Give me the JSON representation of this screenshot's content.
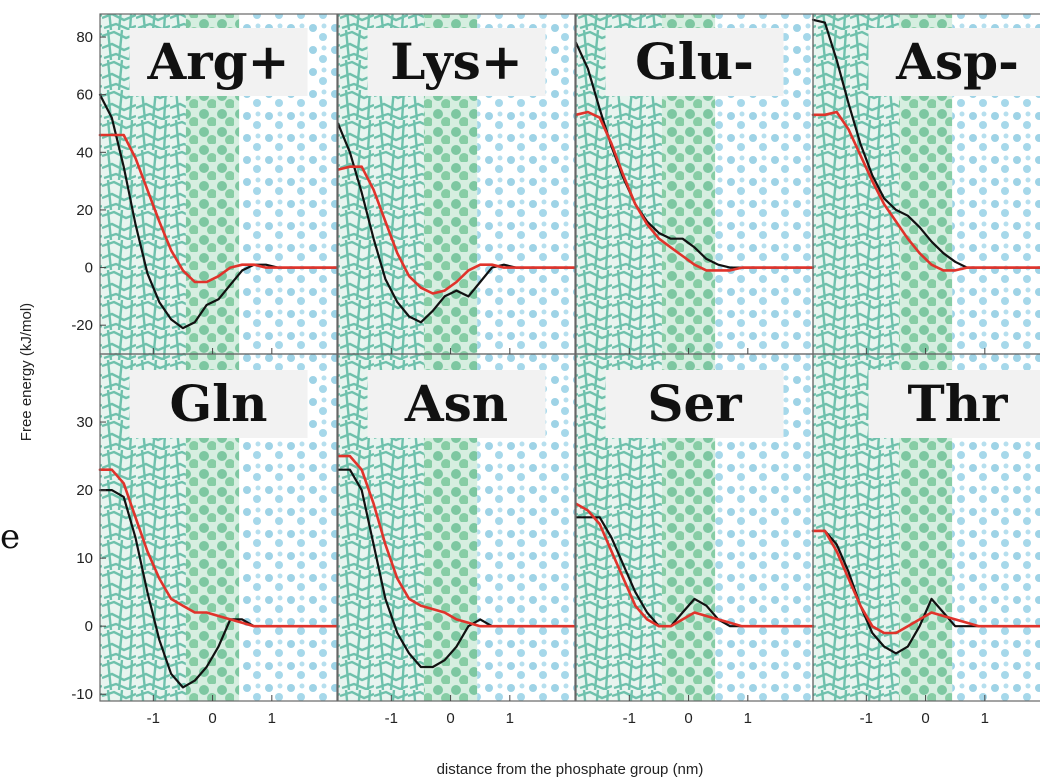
{
  "xlabel": "distance from the phosphate group (nm)",
  "ylabel": "Free energy (kJ/mol)",
  "edge_glyph": "e",
  "colors": {
    "black_curve": "#111111",
    "red_curve": "#e0332b",
    "lipid_tail": "#58b9a0",
    "headgroup": "#74c49a",
    "water": "#9ed3e6"
  },
  "chart_data": [
    {
      "type": "line",
      "title": "Arg+",
      "xlim": [
        -1.9,
        2.1
      ],
      "ylim": [
        -30,
        88
      ],
      "x_ticks": [
        -1,
        0,
        1
      ],
      "x_tick_labels": [
        "-1",
        "0",
        "1"
      ],
      "y_ticks": [
        -20,
        0,
        20,
        40,
        60,
        80
      ],
      "y_tick_labels": [
        "-20",
        "0",
        "20",
        "40",
        "60",
        "80"
      ],
      "series": [
        {
          "color": "#111111",
          "x": [
            -1.9,
            -1.7,
            -1.5,
            -1.3,
            -1.1,
            -0.9,
            -0.7,
            -0.5,
            -0.3,
            -0.1,
            0.1,
            0.3,
            0.5,
            0.7,
            0.9,
            1.1,
            1.5,
            2.1
          ],
          "y": [
            60,
            52,
            35,
            15,
            -2,
            -12,
            -18,
            -21,
            -19,
            -13,
            -11,
            -6,
            -1,
            1,
            1,
            0,
            0,
            0
          ]
        },
        {
          "color": "#e0332b",
          "x": [
            -1.9,
            -1.7,
            -1.5,
            -1.3,
            -1.1,
            -0.9,
            -0.7,
            -0.5,
            -0.3,
            -0.1,
            0.1,
            0.3,
            0.5,
            0.7,
            0.9,
            1.1,
            1.5,
            2.1
          ],
          "y": [
            46,
            46,
            46,
            38,
            27,
            16,
            6,
            -1,
            -5,
            -5,
            -3,
            0,
            1,
            1,
            0,
            0,
            0,
            0
          ]
        }
      ]
    },
    {
      "type": "line",
      "title": "Lys+",
      "xlim": [
        -1.9,
        2.1
      ],
      "ylim": [
        -30,
        88
      ],
      "x_ticks": [
        -1,
        0,
        1
      ],
      "x_tick_labels": [
        "-1",
        "0",
        "1"
      ],
      "y_ticks": [],
      "y_tick_labels": [],
      "series": [
        {
          "color": "#111111",
          "x": [
            -1.9,
            -1.7,
            -1.5,
            -1.3,
            -1.1,
            -0.9,
            -0.7,
            -0.5,
            -0.3,
            -0.1,
            0.1,
            0.3,
            0.5,
            0.7,
            0.9,
            1.1,
            1.5,
            2.1
          ],
          "y": [
            50,
            40,
            26,
            10,
            -4,
            -12,
            -17,
            -19,
            -15,
            -10,
            -8,
            -10,
            -5,
            0,
            1,
            0,
            0,
            0
          ]
        },
        {
          "color": "#e0332b",
          "x": [
            -1.9,
            -1.7,
            -1.5,
            -1.3,
            -1.1,
            -0.9,
            -0.7,
            -0.5,
            -0.3,
            -0.1,
            0.1,
            0.3,
            0.5,
            0.7,
            0.9,
            1.1,
            1.5,
            2.1
          ],
          "y": [
            34,
            35,
            35,
            27,
            16,
            5,
            -3,
            -7,
            -9,
            -8,
            -5,
            -1,
            1,
            1,
            0,
            0,
            0,
            0
          ]
        }
      ]
    },
    {
      "type": "line",
      "title": "Glu-",
      "xlim": [
        -1.9,
        2.1
      ],
      "ylim": [
        -30,
        88
      ],
      "x_ticks": [
        -1,
        0,
        1
      ],
      "x_tick_labels": [
        "-1",
        "0",
        "1"
      ],
      "y_ticks": [],
      "y_tick_labels": [],
      "series": [
        {
          "color": "#111111",
          "x": [
            -1.9,
            -1.7,
            -1.5,
            -1.3,
            -1.1,
            -0.9,
            -0.7,
            -0.5,
            -0.3,
            -0.1,
            0.1,
            0.3,
            0.5,
            0.7,
            0.9,
            1.1,
            1.5,
            2.1
          ],
          "y": [
            78,
            69,
            55,
            42,
            31,
            22,
            16,
            12,
            10,
            10,
            7,
            3,
            1,
            0,
            0,
            0,
            0,
            0
          ]
        },
        {
          "color": "#e0332b",
          "x": [
            -1.9,
            -1.7,
            -1.5,
            -1.3,
            -1.1,
            -0.9,
            -0.7,
            -0.5,
            -0.3,
            -0.1,
            0.1,
            0.3,
            0.5,
            0.7,
            0.9,
            1.1,
            1.5,
            2.1
          ],
          "y": [
            53,
            54,
            52,
            43,
            32,
            22,
            15,
            10,
            7,
            4,
            1,
            -1,
            -1,
            -1,
            0,
            0,
            0,
            0
          ]
        }
      ]
    },
    {
      "type": "line",
      "title": "Asp-",
      "xlim": [
        -1.9,
        2.1
      ],
      "ylim": [
        -30,
        88
      ],
      "x_ticks": [
        -1,
        0,
        1
      ],
      "x_tick_labels": [
        "-1",
        "0",
        "1"
      ],
      "y_ticks": [],
      "y_tick_labels": [],
      "series": [
        {
          "color": "#111111",
          "x": [
            -1.9,
            -1.7,
            -1.5,
            -1.3,
            -1.1,
            -0.9,
            -0.7,
            -0.5,
            -0.3,
            -0.1,
            0.1,
            0.3,
            0.5,
            0.7,
            0.9,
            1.1,
            1.5,
            2.1
          ],
          "y": [
            86,
            85,
            72,
            57,
            43,
            32,
            24,
            20,
            18,
            14,
            9,
            5,
            2,
            0,
            0,
            0,
            0,
            0
          ]
        },
        {
          "color": "#e0332b",
          "x": [
            -1.9,
            -1.7,
            -1.5,
            -1.3,
            -1.1,
            -0.9,
            -0.7,
            -0.5,
            -0.3,
            -0.1,
            0.1,
            0.3,
            0.5,
            0.7,
            0.9,
            1.1,
            1.5,
            2.1
          ],
          "y": [
            53,
            53,
            54,
            48,
            39,
            30,
            22,
            16,
            10,
            5,
            1,
            -1,
            -1,
            0,
            0,
            0,
            0,
            0
          ]
        }
      ]
    },
    {
      "type": "line",
      "title": "Gln",
      "xlim": [
        -1.9,
        2.1
      ],
      "ylim": [
        -11,
        40
      ],
      "x_ticks": [
        -1,
        0,
        1
      ],
      "x_tick_labels": [
        "-1",
        "0",
        "1"
      ],
      "y_ticks": [
        -10,
        0,
        10,
        20,
        30
      ],
      "y_tick_labels": [
        "-10",
        "0",
        "10",
        "20",
        "30"
      ],
      "series": [
        {
          "color": "#111111",
          "x": [
            -1.9,
            -1.7,
            -1.5,
            -1.3,
            -1.1,
            -0.9,
            -0.7,
            -0.5,
            -0.3,
            -0.1,
            0.1,
            0.3,
            0.5,
            0.7,
            0.9,
            1.1,
            1.5,
            2.1
          ],
          "y": [
            20,
            20,
            19,
            13,
            5,
            -2,
            -7,
            -9,
            -8,
            -6,
            -3,
            1,
            1,
            0,
            0,
            0,
            0,
            0
          ]
        },
        {
          "color": "#e0332b",
          "x": [
            -1.9,
            -1.7,
            -1.5,
            -1.3,
            -1.1,
            -0.9,
            -0.7,
            -0.5,
            -0.3,
            -0.1,
            0.1,
            0.3,
            0.5,
            0.7,
            0.9,
            1.1,
            1.5,
            2.1
          ],
          "y": [
            23,
            23,
            21,
            16,
            11,
            7,
            4,
            3,
            2,
            2,
            1.5,
            1,
            0.5,
            0,
            0,
            0,
            0,
            0
          ]
        }
      ]
    },
    {
      "type": "line",
      "title": "Asn",
      "xlim": [
        -1.9,
        2.1
      ],
      "ylim": [
        -11,
        40
      ],
      "x_ticks": [
        -1,
        0,
        1
      ],
      "x_tick_labels": [
        "-1",
        "0",
        "1"
      ],
      "y_ticks": [],
      "y_tick_labels": [],
      "series": [
        {
          "color": "#111111",
          "x": [
            -1.9,
            -1.7,
            -1.5,
            -1.3,
            -1.1,
            -0.9,
            -0.7,
            -0.5,
            -0.3,
            -0.1,
            0.1,
            0.3,
            0.5,
            0.7,
            0.9,
            1.1,
            1.5,
            2.1
          ],
          "y": [
            23,
            23,
            20,
            12,
            4,
            -1,
            -4,
            -6,
            -6,
            -5,
            -3,
            0,
            1,
            0,
            0,
            0,
            0,
            0
          ]
        },
        {
          "color": "#e0332b",
          "x": [
            -1.9,
            -1.7,
            -1.5,
            -1.3,
            -1.1,
            -0.9,
            -0.7,
            -0.5,
            -0.3,
            -0.1,
            0.1,
            0.3,
            0.5,
            0.7,
            0.9,
            1.1,
            1.5,
            2.1
          ],
          "y": [
            25,
            25,
            23,
            18,
            12,
            7,
            4,
            3,
            2.5,
            2,
            1,
            0.5,
            0,
            0,
            0,
            0,
            0,
            0
          ]
        }
      ]
    },
    {
      "type": "line",
      "title": "Ser",
      "xlim": [
        -1.9,
        2.1
      ],
      "ylim": [
        -11,
        40
      ],
      "x_ticks": [
        -1,
        0,
        1
      ],
      "x_tick_labels": [
        "-1",
        "0",
        "1"
      ],
      "y_ticks": [],
      "y_tick_labels": [],
      "series": [
        {
          "color": "#111111",
          "x": [
            -1.9,
            -1.7,
            -1.5,
            -1.3,
            -1.1,
            -0.9,
            -0.7,
            -0.5,
            -0.3,
            -0.1,
            0.1,
            0.3,
            0.5,
            0.7,
            0.9,
            1.1,
            1.5,
            2.1
          ],
          "y": [
            16,
            16,
            16,
            13,
            9,
            5,
            2,
            0,
            0,
            2,
            4,
            3,
            1,
            0,
            0,
            0,
            0,
            0
          ]
        },
        {
          "color": "#e0332b",
          "x": [
            -1.9,
            -1.7,
            -1.5,
            -1.3,
            -1.1,
            -0.9,
            -0.7,
            -0.5,
            -0.3,
            -0.1,
            0.1,
            0.3,
            0.5,
            0.7,
            0.9,
            1.1,
            1.5,
            2.1
          ],
          "y": [
            18,
            17,
            15,
            11,
            7,
            3,
            1,
            0,
            0,
            1,
            2,
            1.5,
            1,
            0.5,
            0,
            0,
            0,
            0
          ]
        }
      ]
    },
    {
      "type": "line",
      "title": "Thr",
      "xlim": [
        -1.9,
        2.1
      ],
      "ylim": [
        -11,
        40
      ],
      "x_ticks": [
        -1,
        0,
        1
      ],
      "x_tick_labels": [
        "-1",
        "0",
        "1"
      ],
      "y_ticks": [],
      "y_tick_labels": [],
      "series": [
        {
          "color": "#111111",
          "x": [
            -1.9,
            -1.7,
            -1.5,
            -1.3,
            -1.1,
            -0.9,
            -0.7,
            -0.5,
            -0.3,
            -0.1,
            0.1,
            0.3,
            0.5,
            0.7,
            0.9,
            1.1,
            1.5,
            2.1
          ],
          "y": [
            14,
            14,
            12,
            8,
            3,
            -1,
            -3,
            -4,
            -3,
            0,
            4,
            2,
            0,
            0,
            0,
            0,
            0,
            0
          ]
        },
        {
          "color": "#e0332b",
          "x": [
            -1.9,
            -1.7,
            -1.5,
            -1.3,
            -1.1,
            -0.9,
            -0.7,
            -0.5,
            -0.3,
            -0.1,
            0.1,
            0.3,
            0.5,
            0.7,
            0.9,
            1.1,
            1.5,
            2.1
          ],
          "y": [
            14,
            14,
            11,
            7,
            3,
            0,
            -1,
            -1,
            0,
            1,
            2,
            1.5,
            1,
            0.5,
            0,
            0,
            0,
            0
          ]
        }
      ]
    }
  ]
}
